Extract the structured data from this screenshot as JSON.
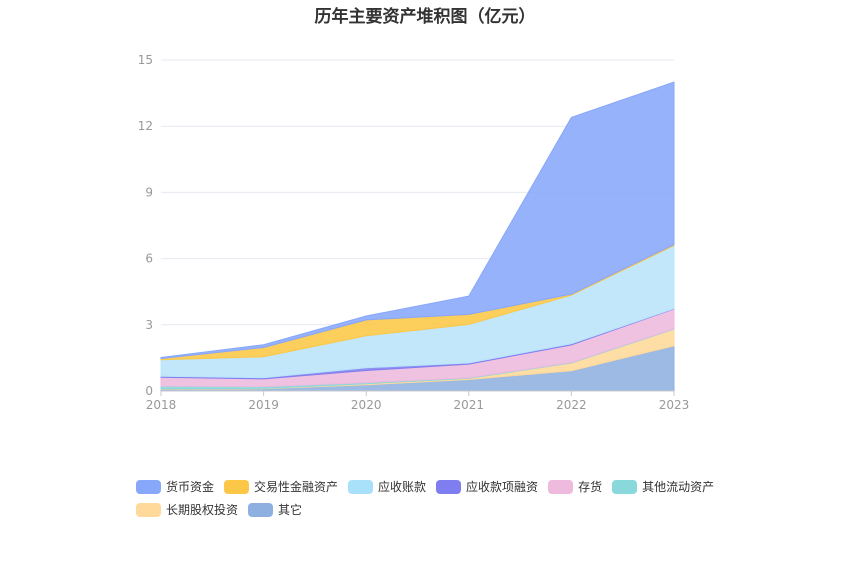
{
  "chart_data": {
    "type": "area",
    "stacked": true,
    "title": "历年主要资产堆积图（亿元）",
    "xlabel": "",
    "ylabel": "",
    "x": [
      "2018",
      "2019",
      "2020",
      "2021",
      "2022",
      "2023"
    ],
    "ylim": [
      0,
      15
    ],
    "yticks": [
      0,
      3,
      6,
      9,
      12,
      15
    ],
    "grid": true,
    "legend_position": "bottom",
    "series": [
      {
        "name": "其它",
        "color": "#8eb0e0",
        "values": [
          0.08,
          0.1,
          0.28,
          0.52,
          0.92,
          2.05
        ]
      },
      {
        "name": "长期股权投资",
        "color": "#ffd99a",
        "values": [
          0.02,
          0.02,
          0.05,
          0.05,
          0.35,
          0.75
        ]
      },
      {
        "name": "其他流动资产",
        "color": "#88d8dc",
        "values": [
          0.12,
          0.08,
          0.05,
          0.03,
          0.02,
          0.02
        ]
      },
      {
        "name": "存货",
        "color": "#eebadd",
        "values": [
          0.4,
          0.35,
          0.55,
          0.62,
          0.8,
          0.9
        ]
      },
      {
        "name": "应收款项融资",
        "color": "#7f7ef0",
        "values": [
          0.05,
          0.05,
          0.12,
          0.05,
          0.05,
          0.02
        ]
      },
      {
        "name": "应收账款",
        "color": "#b9e4fa",
        "values": [
          0.75,
          0.95,
          1.45,
          1.75,
          2.2,
          2.85
        ]
      },
      {
        "name": "交易性金融资产",
        "color": "#fcc746",
        "values": [
          0.05,
          0.42,
          0.72,
          0.45,
          0.05,
          0.05
        ]
      },
      {
        "name": "货币资金",
        "color": "#87a7fb",
        "values": [
          0.05,
          0.13,
          0.18,
          0.83,
          8.01,
          7.36
        ]
      }
    ]
  },
  "legend": {
    "items": [
      {
        "label": "货币资金",
        "color": "#87a7fb"
      },
      {
        "label": "交易性金融资产",
        "color": "#fcc746"
      },
      {
        "label": "应收账款",
        "color": "#a9e0fa"
      },
      {
        "label": "应收款项融资",
        "color": "#7f7ef0"
      },
      {
        "label": "存货",
        "color": "#eebadd"
      },
      {
        "label": "其他流动资产",
        "color": "#88d8dc"
      },
      {
        "label": "长期股权投资",
        "color": "#ffd99a"
      },
      {
        "label": "其它",
        "color": "#8eb0e0"
      }
    ]
  }
}
